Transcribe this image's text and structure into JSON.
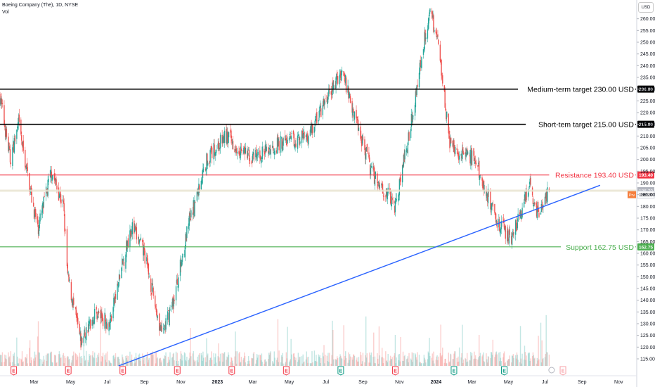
{
  "header": {
    "symbol_line": "Boeing Company (The), 1D, NYSE",
    "vol_label": "Vol"
  },
  "currency": "USD",
  "colors": {
    "up": "#26a69a",
    "down": "#ef5350",
    "resistance": "#f23645",
    "support": "#4caf50",
    "target": "#000000",
    "trendline": "#2962ff",
    "current_price_line": "#e8e3cf",
    "prev_close_tag": "#f57f3d",
    "last_price_tag": "#b2b5be"
  },
  "chart_data": {
    "type": "candlestick",
    "ylim": [
      112,
      268
    ],
    "y_ticks": [
      115,
      120,
      125,
      130,
      135,
      140,
      145,
      150,
      155,
      160,
      165,
      170,
      175,
      180,
      185,
      190,
      195,
      200,
      205,
      210,
      215,
      220,
      225,
      230,
      235,
      240,
      245,
      250,
      255,
      260
    ],
    "x_ticks": [
      "Mar",
      "May",
      "Jul",
      "Sep",
      "Nov",
      "2023",
      "Mar",
      "May",
      "Jul",
      "Sep",
      "Nov",
      "2024",
      "Mar",
      "May",
      "Jul",
      "Sep",
      "Nov"
    ],
    "x_tick_bold": [
      "2023",
      "2024"
    ],
    "price_path": [
      {
        "date": "2022-01-03",
        "close": 227
      },
      {
        "date": "2022-01-20",
        "close": 200
      },
      {
        "date": "2022-02-03",
        "close": 215
      },
      {
        "date": "2022-02-16",
        "close": 196
      },
      {
        "date": "2022-03-07",
        "close": 170
      },
      {
        "date": "2022-03-30",
        "close": 195
      },
      {
        "date": "2022-04-19",
        "close": 180
      },
      {
        "date": "2022-04-26",
        "close": 150
      },
      {
        "date": "2022-05-18",
        "close": 122
      },
      {
        "date": "2022-06-12",
        "close": 135
      },
      {
        "date": "2022-07-05",
        "close": 130
      },
      {
        "date": "2022-08-10",
        "close": 172
      },
      {
        "date": "2022-09-01",
        "close": 160
      },
      {
        "date": "2022-09-30",
        "close": 125
      },
      {
        "date": "2022-10-20",
        "close": 140
      },
      {
        "date": "2022-11-14",
        "close": 172
      },
      {
        "date": "2022-12-14",
        "close": 200
      },
      {
        "date": "2023-01-15",
        "close": 210
      },
      {
        "date": "2023-03-01",
        "close": 200
      },
      {
        "date": "2023-04-15",
        "close": 207
      },
      {
        "date": "2023-06-01",
        "close": 210
      },
      {
        "date": "2023-07-28",
        "close": 238
      },
      {
        "date": "2023-09-15",
        "close": 195
      },
      {
        "date": "2023-10-25",
        "close": 180
      },
      {
        "date": "2023-11-20",
        "close": 215
      },
      {
        "date": "2023-12-15",
        "close": 255
      },
      {
        "date": "2023-12-22",
        "close": 263
      },
      {
        "date": "2024-01-05",
        "close": 250
      },
      {
        "date": "2024-01-25",
        "close": 205
      },
      {
        "date": "2024-03-05",
        "close": 200
      },
      {
        "date": "2024-04-15",
        "close": 172
      },
      {
        "date": "2024-05-05",
        "close": 167
      },
      {
        "date": "2024-05-22",
        "close": 176
      },
      {
        "date": "2024-06-05",
        "close": 190
      },
      {
        "date": "2024-06-20",
        "close": 176
      },
      {
        "date": "2024-07-08",
        "close": 186.7
      }
    ],
    "horizontal_levels": [
      {
        "label": "Medium-term target 230.00 USD",
        "tag": "230.00",
        "price": 230.0,
        "kind": "target"
      },
      {
        "label": "Short-tem target 215.00 USD",
        "tag": "215.00",
        "price": 215.0,
        "kind": "target"
      },
      {
        "label": "Resistance 193.40 USD",
        "tag": "193.40",
        "price": 193.4,
        "kind": "resistance"
      },
      {
        "label": "Support 162.75 USD",
        "tag": "162.75",
        "price": 162.75,
        "kind": "support"
      }
    ],
    "trendline": {
      "from": {
        "date": "2022-07-20",
        "price": 112
      },
      "to": {
        "date": "2024-10-01",
        "price": 189
      }
    },
    "last_price": {
      "tag": "186.70",
      "price": 186.7
    },
    "prev_close": {
      "prefix": "Prv",
      "tag": "186.20",
      "price": 186.2
    },
    "event_markers": [
      {
        "date": "2022-01-26",
        "letter": "E",
        "kind": "earnings-red"
      },
      {
        "date": "2022-04-27",
        "letter": "E",
        "kind": "earnings-red"
      },
      {
        "date": "2022-07-27",
        "letter": "E",
        "kind": "earnings-red"
      },
      {
        "date": "2022-10-26",
        "letter": "E",
        "kind": "earnings-red"
      },
      {
        "date": "2023-01-25",
        "letter": "E",
        "kind": "earnings-red"
      },
      {
        "date": "2023-04-26",
        "letter": "E",
        "kind": "earnings-red"
      },
      {
        "date": "2023-07-26",
        "letter": "E",
        "kind": "earnings-green"
      },
      {
        "date": "2023-10-25",
        "letter": "E",
        "kind": "earnings-red"
      },
      {
        "date": "2024-01-31",
        "letter": "E",
        "kind": "earnings-green"
      },
      {
        "date": "2024-04-24",
        "letter": "E",
        "kind": "earnings-green"
      },
      {
        "date": "2024-07-31",
        "letter": "E",
        "kind": "earnings-future"
      }
    ]
  }
}
